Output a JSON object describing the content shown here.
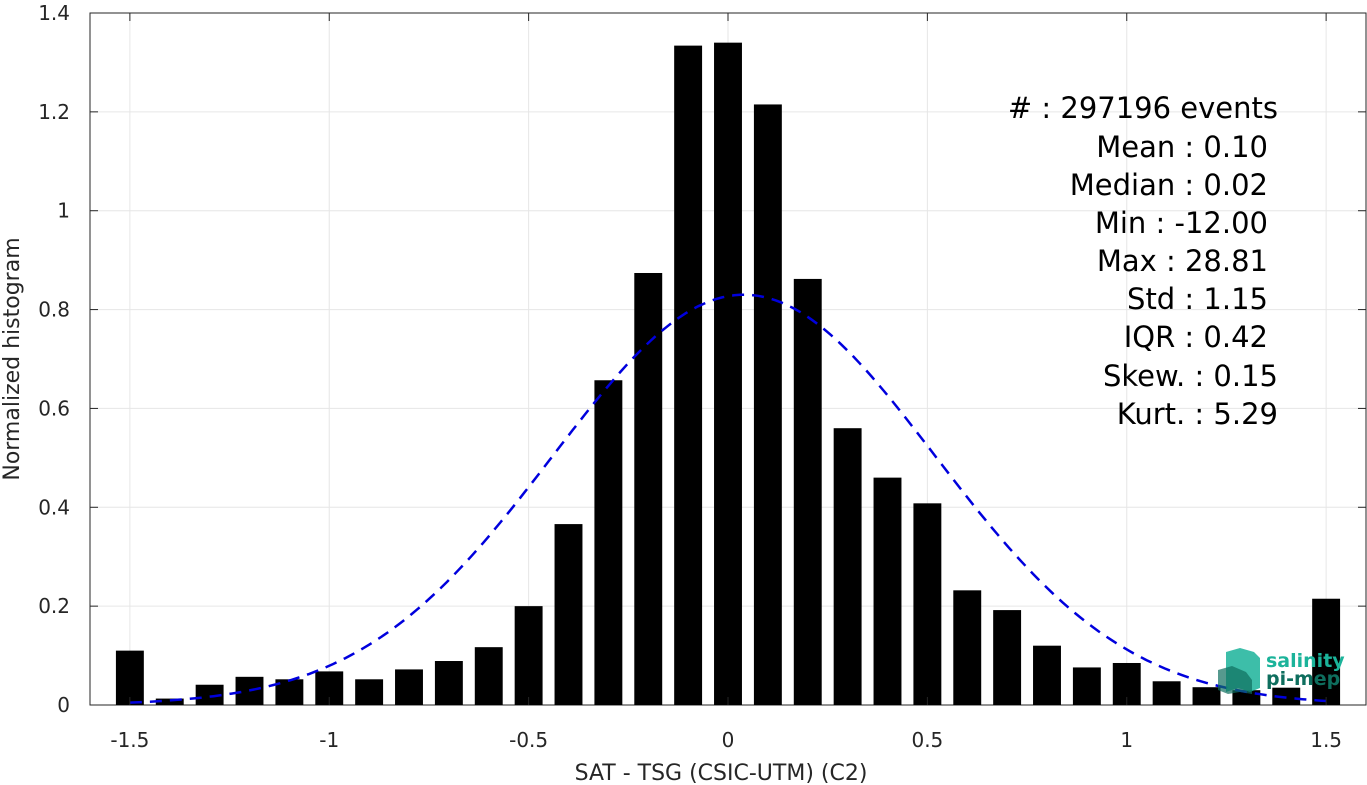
{
  "chart_data": {
    "type": "bar",
    "xlabel": "SAT - TSG (CSIC-UTM) (C2)",
    "ylabel": "Normalized histogram",
    "xlim": [
      -1.6,
      1.6
    ],
    "ylim": [
      0,
      1.4
    ],
    "x_ticks": [
      -1.5,
      -1,
      -0.5,
      0,
      0.5,
      1,
      1.5
    ],
    "x_tick_labels": [
      "-1.5",
      "-1",
      "-0.5",
      "0",
      "0.5",
      "1",
      "1.5"
    ],
    "y_ticks": [
      0,
      0.2,
      0.4,
      0.6,
      0.8,
      1,
      1.2,
      1.4
    ],
    "y_tick_labels": [
      "0",
      "0.2",
      "0.4",
      "0.6",
      "0.8",
      "1",
      "1.2",
      "1.4"
    ],
    "grid": true,
    "bar_width": 0.07,
    "x": [
      -1.5,
      -1.4,
      -1.3,
      -1.2,
      -1.1,
      -1.0,
      -0.9,
      -0.8,
      -0.7,
      -0.6,
      -0.5,
      -0.4,
      -0.3,
      -0.2,
      -0.1,
      0.0,
      0.1,
      0.2,
      0.3,
      0.4,
      0.5,
      0.6,
      0.7,
      0.8,
      0.9,
      1.0,
      1.1,
      1.2,
      1.3,
      1.4,
      1.5
    ],
    "values": [
      0.11,
      0.013,
      0.041,
      0.057,
      0.052,
      0.068,
      0.052,
      0.072,
      0.089,
      0.117,
      0.2,
      0.366,
      0.657,
      0.874,
      1.334,
      1.34,
      1.215,
      0.862,
      0.56,
      0.46,
      0.408,
      0.232,
      0.192,
      0.12,
      0.076,
      0.085,
      0.048,
      0.036,
      0.03,
      0.035,
      0.215
    ],
    "bar_color": "#000000",
    "fit_curve": {
      "style": "dashed",
      "color": "#0000dd",
      "mean": 0.04,
      "std": 0.48,
      "peak": 0.83,
      "x_range": [
        -1.5,
        1.5
      ]
    },
    "stats": [
      {
        "label": "#  : 297196 events"
      },
      {
        "label": "Mean : 0.10"
      },
      {
        "label": "Median : 0.02"
      },
      {
        "label": "Min : -12.00"
      },
      {
        "label": "Max : 28.81"
      },
      {
        "label": "Std : 1.15"
      },
      {
        "label": "IQR : 0.42"
      },
      {
        "label": "Skew. : 0.15"
      },
      {
        "label": "Kurt. : 5.29"
      }
    ]
  },
  "logo": {
    "line1": "salinity",
    "line2": "pi-mep",
    "color1": "#1bb39a",
    "color2": "#0e6e5e"
  }
}
